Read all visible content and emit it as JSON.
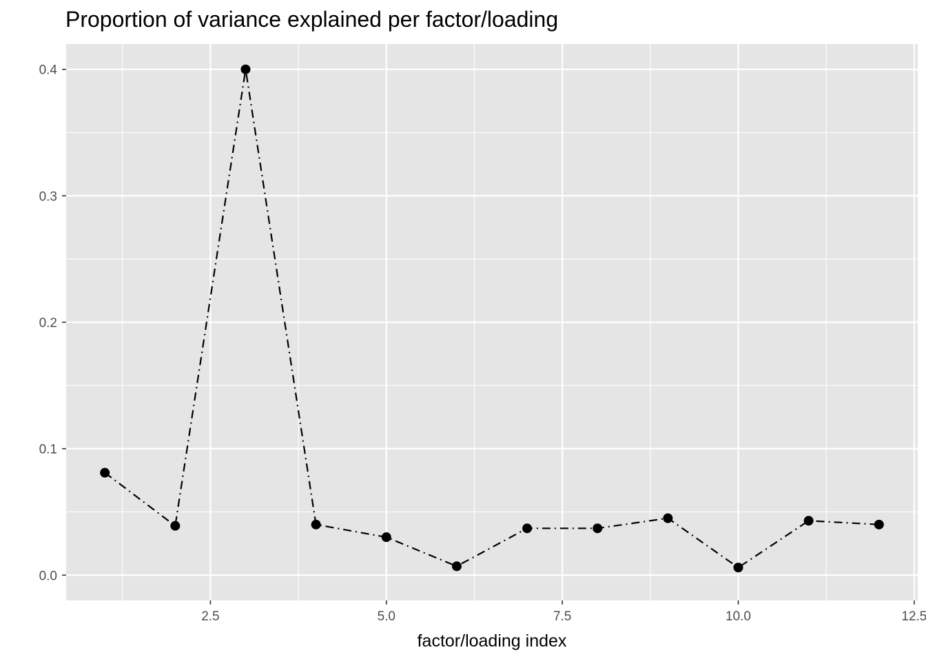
{
  "chart_data": {
    "type": "line",
    "title": "Proportion of variance explained per factor/loading",
    "xlabel": "factor/loading index",
    "ylabel": "",
    "x": [
      1,
      2,
      3,
      4,
      5,
      6,
      7,
      8,
      9,
      10,
      11,
      12
    ],
    "series": [
      {
        "values": [
          0.081,
          0.039,
          0.4,
          0.04,
          0.03,
          0.007,
          0.037,
          0.037,
          0.045,
          0.006,
          0.043,
          0.04
        ]
      }
    ],
    "xlim": [
      0.45,
      12.55
    ],
    "ylim": [
      -0.02,
      0.42
    ],
    "x_ticks": [
      2.5,
      5.0,
      7.5,
      10.0,
      12.5
    ],
    "x_tick_labels": [
      "2.5",
      "5.0",
      "7.5",
      "10.0",
      "12.5"
    ],
    "y_ticks": [
      0.0,
      0.1,
      0.2,
      0.3,
      0.4
    ],
    "y_tick_labels": [
      "0.0",
      "0.1",
      "0.2",
      "0.3",
      "0.4"
    ],
    "line_style": "dashdot",
    "grid": true,
    "colors": {
      "panel": "#e5e5e5",
      "grid": "#ffffff",
      "line": "#000000",
      "point": "#000000",
      "tick_text": "#4d4d4d"
    }
  }
}
